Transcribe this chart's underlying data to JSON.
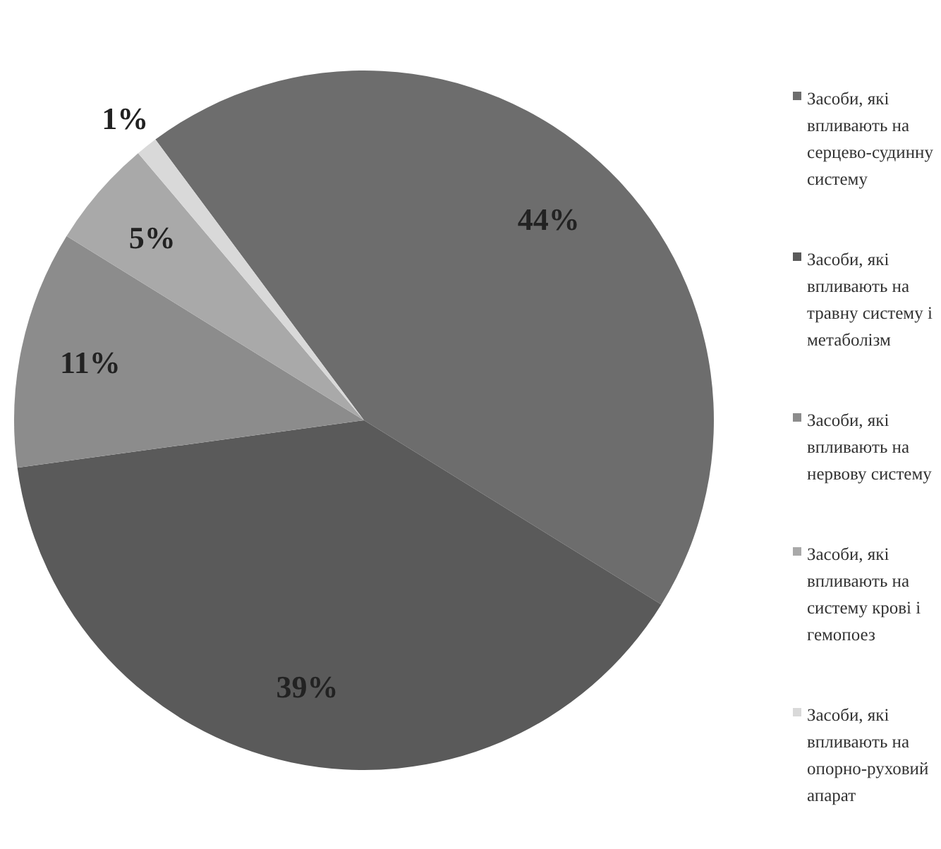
{
  "chart_data": {
    "type": "pie",
    "categories": [
      "Засоби, які впливають на серцево-судинну систему",
      "Засоби, які впливають на травну систему і метаболізм",
      "Засоби, які впливають на нервову систему",
      "Засоби, які впливають на систему крові і гемопоез",
      "Засоби, які впливають на опорно-руховий апарат"
    ],
    "values": [
      44,
      39,
      11,
      5,
      1
    ],
    "colors": [
      "#6d6d6d",
      "#5a5a5a",
      "#8c8c8c",
      "#a9a9a9",
      "#d9d9d9"
    ],
    "value_labels": [
      "44%",
      "39%",
      "11%",
      "5%",
      "1%"
    ],
    "legend": "right"
  }
}
